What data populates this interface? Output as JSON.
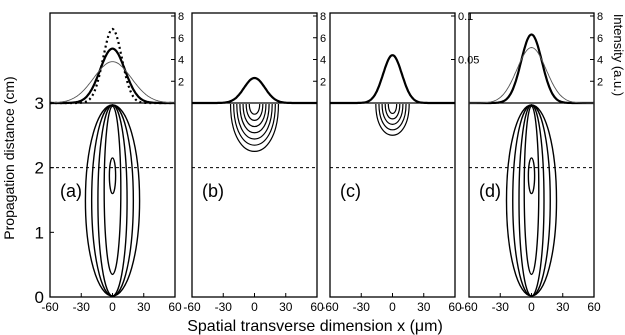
{
  "chart_data": {
    "type": "line",
    "ylabel": "Propagation distance (cm)",
    "xlabel": "Spatial transverse dimension x (μm)",
    "right_ylabel": "Intensity (a.u.)",
    "xlim": [
      -60,
      60
    ],
    "ylim": [
      0,
      3
    ],
    "x_ticks": [
      "-60",
      "-30",
      "0",
      "30",
      "60"
    ],
    "y_ticks": [
      "0",
      "1",
      "2",
      "3"
    ],
    "dashed_reference_z": 2,
    "panels": [
      {
        "label": "(a)",
        "intensity_ticks": [
          "2",
          "4",
          "6",
          "8"
        ],
        "intensity_lim": [
          0,
          8
        ],
        "profiles": [
          {
            "style": "thick-solid",
            "peak": 5.0,
            "width_um": 12
          },
          {
            "style": "dotted",
            "peak": 6.8,
            "width_um": 9
          },
          {
            "style": "thin-solid",
            "peak": 3.8,
            "width_um": 18
          }
        ],
        "contours": "elongated-filament",
        "contour_halfwidths_um": [
          3,
          8,
          14,
          20,
          26
        ],
        "contour_extent_z": [
          0,
          3
        ]
      },
      {
        "label": "(b)",
        "intensity_ticks": [
          "2",
          "4",
          "6",
          "8"
        ],
        "intensity_lim": [
          0,
          8
        ],
        "profiles": [
          {
            "style": "thick-solid",
            "peak": 2.3,
            "width_um": 10
          }
        ],
        "contours": "decaying-bowl",
        "contour_halfwidths_um": [
          5,
          8,
          11,
          14,
          17,
          20,
          23
        ],
        "contour_extent_z": [
          2.25,
          3
        ]
      },
      {
        "label": "(c)",
        "intensity_ticks": [
          "0.05",
          "0.1"
        ],
        "intensity_lim": [
          0,
          0.1
        ],
        "profiles": [
          {
            "style": "thick-solid",
            "peak": 0.055,
            "width_um": 9
          }
        ],
        "contours": "decaying-bowl",
        "contour_halfwidths_um": [
          4,
          7,
          10,
          13,
          16
        ],
        "contour_extent_z": [
          2.5,
          3
        ]
      },
      {
        "label": "(d)",
        "intensity_ticks": [
          "2",
          "4",
          "6",
          "8"
        ],
        "intensity_lim": [
          0,
          8
        ],
        "profiles": [
          {
            "style": "thick-solid",
            "peak": 6.3,
            "width_um": 10
          },
          {
            "style": "thin-solid",
            "peak": 5.1,
            "width_um": 14
          }
        ],
        "contours": "elongated-filament",
        "contour_halfwidths_um": [
          3,
          7,
          12,
          18,
          24
        ],
        "contour_extent_z": [
          0,
          3
        ]
      }
    ]
  }
}
